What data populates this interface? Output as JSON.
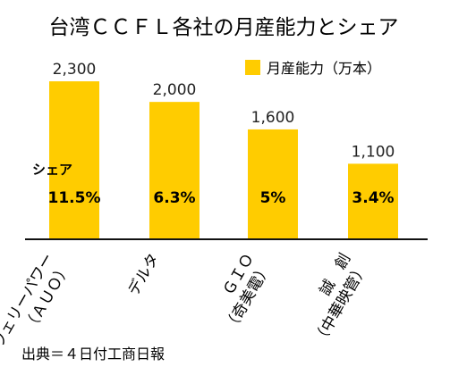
{
  "chart_data": {
    "type": "bar",
    "title": "台湾ＣＣＦＬ各社の月産能力とシェア",
    "legend": {
      "label": "月産能力（万本）",
      "color": "#FFCC00",
      "placement": "top-right"
    },
    "categories": [
      {
        "lines": [
          "ウェリーパワー",
          "（ＡＵＯ）"
        ]
      },
      {
        "lines": [
          "デルタ"
        ]
      },
      {
        "lines": [
          "ＧＩＯ",
          "（奇美電）"
        ]
      },
      {
        "lines": [
          "誠　創",
          "（中華映管）"
        ]
      }
    ],
    "values": [
      2300,
      2000,
      1600,
      1100
    ],
    "value_labels": [
      "2,300",
      "2,000",
      "1,600",
      "1,100"
    ],
    "share_label": "シェア",
    "shares": [
      "11.5%",
      "6.3%",
      "5%",
      "3.4%"
    ],
    "ylim": [
      0,
      2600
    ],
    "grid": false,
    "source": "出典＝４日付工商日報"
  }
}
